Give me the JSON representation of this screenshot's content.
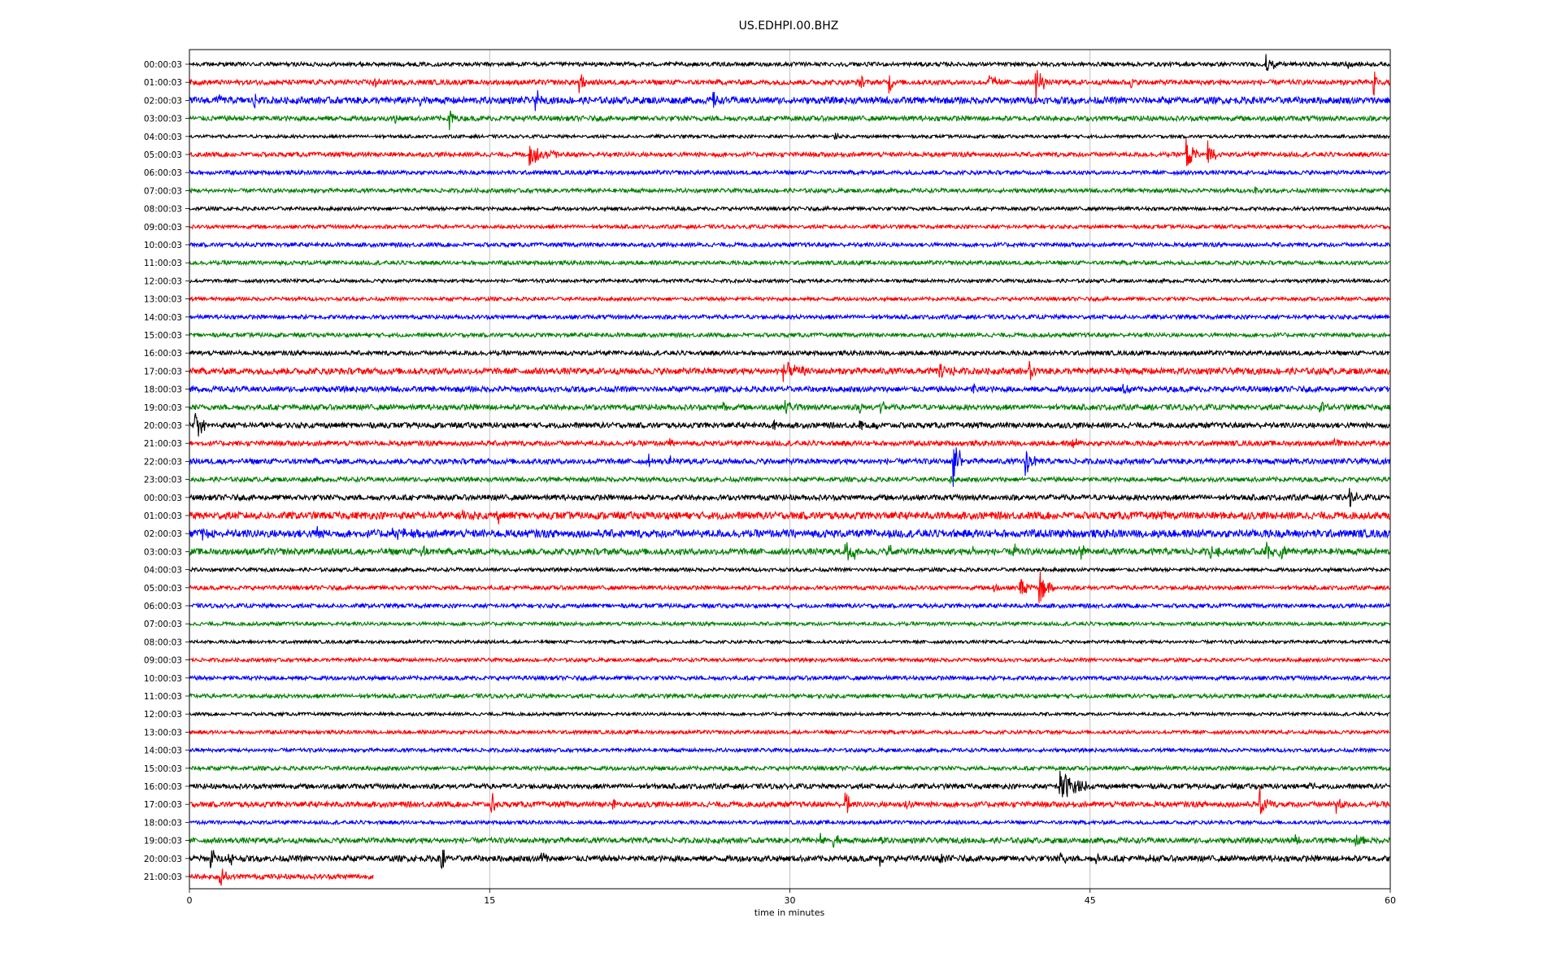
{
  "chart_data": {
    "type": "line",
    "title": "US.EDHPI.00.BHZ",
    "xlabel": "time in minutes",
    "ylabel": "",
    "xlim": [
      0,
      60
    ],
    "xticks": [
      0,
      15,
      30,
      45,
      60
    ],
    "grid": "vertical",
    "legend": "none",
    "color_cycle": [
      "#000000",
      "#ff0000",
      "#0000ff",
      "#008000"
    ],
    "row_labels": [
      "00:00:03",
      "01:00:03",
      "02:00:03",
      "03:00:03",
      "04:00:03",
      "05:00:03",
      "06:00:03",
      "07:00:03",
      "08:00:03",
      "09:00:03",
      "10:00:03",
      "11:00:03",
      "12:00:03",
      "13:00:03",
      "14:00:03",
      "15:00:03",
      "16:00:03",
      "17:00:03",
      "18:00:03",
      "19:00:03",
      "20:00:03",
      "21:00:03",
      "22:00:03",
      "23:00:03",
      "00:00:03",
      "01:00:03",
      "02:00:03",
      "03:00:03",
      "04:00:03",
      "05:00:03",
      "06:00:03",
      "07:00:03",
      "08:00:03",
      "09:00:03",
      "10:00:03",
      "11:00:03",
      "12:00:03",
      "13:00:03",
      "14:00:03",
      "15:00:03",
      "16:00:03",
      "17:00:03",
      "18:00:03",
      "19:00:03",
      "20:00:03",
      "21:00:03"
    ],
    "last_row_end_minute": 9.2,
    "noise_level": [
      0.18,
      0.22,
      0.3,
      0.22,
      0.14,
      0.2,
      0.18,
      0.18,
      0.16,
      0.16,
      0.18,
      0.18,
      0.15,
      0.16,
      0.18,
      0.18,
      0.2,
      0.28,
      0.24,
      0.24,
      0.24,
      0.22,
      0.24,
      0.2,
      0.24,
      0.32,
      0.34,
      0.28,
      0.16,
      0.18,
      0.18,
      0.16,
      0.14,
      0.16,
      0.18,
      0.18,
      0.14,
      0.16,
      0.16,
      0.18,
      0.22,
      0.24,
      0.16,
      0.24,
      0.26,
      0.22
    ],
    "events": [
      {
        "row": 0,
        "t": 53.8,
        "amp": 0.9,
        "dur": 0.5
      },
      {
        "row": 0,
        "t": 57.8,
        "amp": 0.5,
        "dur": 0.4
      },
      {
        "row": 1,
        "t": 9.2,
        "amp": 0.7,
        "dur": 0.3
      },
      {
        "row": 1,
        "t": 19.5,
        "amp": 1.3,
        "dur": 0.3
      },
      {
        "row": 1,
        "t": 33.5,
        "amp": 0.6,
        "dur": 0.3
      },
      {
        "row": 1,
        "t": 35.0,
        "amp": 0.9,
        "dur": 0.2
      },
      {
        "row": 1,
        "t": 40.0,
        "amp": 0.7,
        "dur": 0.5
      },
      {
        "row": 1,
        "t": 42.3,
        "amp": 1.8,
        "dur": 0.5
      },
      {
        "row": 1,
        "t": 47.0,
        "amp": 0.6,
        "dur": 0.2
      },
      {
        "row": 1,
        "t": 59.2,
        "amp": 1.6,
        "dur": 0.2
      },
      {
        "row": 2,
        "t": 1.4,
        "amp": 1.1,
        "dur": 0.3
      },
      {
        "row": 2,
        "t": 3.2,
        "amp": 0.7,
        "dur": 0.3
      },
      {
        "row": 2,
        "t": 11.5,
        "amp": 0.9,
        "dur": 0.2
      },
      {
        "row": 2,
        "t": 17.3,
        "amp": 0.9,
        "dur": 0.4
      },
      {
        "row": 2,
        "t": 26.2,
        "amp": 0.6,
        "dur": 0.2
      },
      {
        "row": 3,
        "t": 10.3,
        "amp": 0.5,
        "dur": 0.3
      },
      {
        "row": 3,
        "t": 13.0,
        "amp": 1.3,
        "dur": 0.3
      },
      {
        "row": 4,
        "t": 32.3,
        "amp": 0.3,
        "dur": 0.2
      },
      {
        "row": 5,
        "t": 17.0,
        "amp": 1.0,
        "dur": 1.4
      },
      {
        "row": 5,
        "t": 49.8,
        "amp": 1.6,
        "dur": 0.6
      },
      {
        "row": 5,
        "t": 50.9,
        "amp": 1.9,
        "dur": 0.4
      },
      {
        "row": 7,
        "t": 53.3,
        "amp": 0.4,
        "dur": 0.3
      },
      {
        "row": 17,
        "t": 29.7,
        "amp": 0.8,
        "dur": 1.2
      },
      {
        "row": 17,
        "t": 37.5,
        "amp": 0.7,
        "dur": 0.8
      },
      {
        "row": 17,
        "t": 42.0,
        "amp": 0.8,
        "dur": 0.4
      },
      {
        "row": 18,
        "t": 39.2,
        "amp": 0.5,
        "dur": 0.2
      },
      {
        "row": 18,
        "t": 46.7,
        "amp": 0.5,
        "dur": 0.5
      },
      {
        "row": 19,
        "t": 26.7,
        "amp": 0.5,
        "dur": 0.3
      },
      {
        "row": 19,
        "t": 29.8,
        "amp": 0.6,
        "dur": 0.8
      },
      {
        "row": 19,
        "t": 33.5,
        "amp": 0.6,
        "dur": 0.2
      },
      {
        "row": 19,
        "t": 34.5,
        "amp": 0.9,
        "dur": 0.3
      },
      {
        "row": 19,
        "t": 56.5,
        "amp": 0.7,
        "dur": 0.4
      },
      {
        "row": 20,
        "t": 0.3,
        "amp": 1.3,
        "dur": 0.5
      },
      {
        "row": 20,
        "t": 29.2,
        "amp": 0.5,
        "dur": 0.2
      },
      {
        "row": 20,
        "t": 33.5,
        "amp": 0.7,
        "dur": 0.3
      },
      {
        "row": 20,
        "t": 34.3,
        "amp": 0.4,
        "dur": 0.4
      },
      {
        "row": 21,
        "t": 24.0,
        "amp": 0.3,
        "dur": 0.2
      },
      {
        "row": 21,
        "t": 44.1,
        "amp": 0.8,
        "dur": 0.3
      },
      {
        "row": 21,
        "t": 57.2,
        "amp": 0.3,
        "dur": 0.5
      },
      {
        "row": 22,
        "t": 23.0,
        "amp": 0.5,
        "dur": 0.2
      },
      {
        "row": 22,
        "t": 24.0,
        "amp": 0.4,
        "dur": 0.2
      },
      {
        "row": 22,
        "t": 38.2,
        "amp": 2.6,
        "dur": 0.5
      },
      {
        "row": 22,
        "t": 41.8,
        "amp": 1.4,
        "dur": 0.5
      },
      {
        "row": 22,
        "t": 55.0,
        "amp": 0.3,
        "dur": 0.3
      },
      {
        "row": 23,
        "t": 38.0,
        "amp": 0.4,
        "dur": 0.3
      },
      {
        "row": 24,
        "t": 58.0,
        "amp": 0.7,
        "dur": 0.5
      },
      {
        "row": 25,
        "t": 13.6,
        "amp": 0.5,
        "dur": 0.2
      },
      {
        "row": 25,
        "t": 15.4,
        "amp": 0.7,
        "dur": 0.2
      },
      {
        "row": 25,
        "t": 17.2,
        "amp": 0.4,
        "dur": 0.2
      },
      {
        "row": 26,
        "t": 0.6,
        "amp": 0.4,
        "dur": 1.0
      },
      {
        "row": 26,
        "t": 6.4,
        "amp": 0.8,
        "dur": 0.2
      },
      {
        "row": 26,
        "t": 10.0,
        "amp": 0.4,
        "dur": 2.0
      },
      {
        "row": 27,
        "t": 11.6,
        "amp": 0.7,
        "dur": 0.3
      },
      {
        "row": 27,
        "t": 32.8,
        "amp": 1.0,
        "dur": 1.0
      },
      {
        "row": 27,
        "t": 35.0,
        "amp": 0.7,
        "dur": 0.3
      },
      {
        "row": 27,
        "t": 39.2,
        "amp": 0.5,
        "dur": 0.3
      },
      {
        "row": 27,
        "t": 41.2,
        "amp": 0.7,
        "dur": 0.2
      },
      {
        "row": 27,
        "t": 44.5,
        "amp": 1.0,
        "dur": 0.3
      },
      {
        "row": 27,
        "t": 51.0,
        "amp": 0.5,
        "dur": 0.8
      },
      {
        "row": 27,
        "t": 53.8,
        "amp": 1.6,
        "dur": 0.4
      },
      {
        "row": 27,
        "t": 54.5,
        "amp": 1.0,
        "dur": 0.4
      },
      {
        "row": 29,
        "t": 40.2,
        "amp": 0.6,
        "dur": 0.3
      },
      {
        "row": 29,
        "t": 41.5,
        "amp": 0.9,
        "dur": 0.6
      },
      {
        "row": 29,
        "t": 42.5,
        "amp": 1.6,
        "dur": 0.7
      },
      {
        "row": 40,
        "t": 43.5,
        "amp": 1.5,
        "dur": 1.5
      },
      {
        "row": 40,
        "t": 56.0,
        "amp": 0.4,
        "dur": 0.3
      },
      {
        "row": 41,
        "t": 15.1,
        "amp": 1.1,
        "dur": 0.3
      },
      {
        "row": 41,
        "t": 21.2,
        "amp": 0.6,
        "dur": 0.3
      },
      {
        "row": 41,
        "t": 32.8,
        "amp": 1.3,
        "dur": 0.3
      },
      {
        "row": 41,
        "t": 35.8,
        "amp": 0.7,
        "dur": 0.3
      },
      {
        "row": 41,
        "t": 53.5,
        "amp": 1.3,
        "dur": 0.6
      },
      {
        "row": 41,
        "t": 57.3,
        "amp": 0.9,
        "dur": 0.4
      },
      {
        "row": 43,
        "t": 31.5,
        "amp": 0.6,
        "dur": 0.5
      },
      {
        "row": 43,
        "t": 32.2,
        "amp": 0.9,
        "dur": 0.3
      },
      {
        "row": 43,
        "t": 34.5,
        "amp": 0.4,
        "dur": 0.3
      },
      {
        "row": 43,
        "t": 55.3,
        "amp": 0.5,
        "dur": 0.2
      },
      {
        "row": 43,
        "t": 58.3,
        "amp": 0.5,
        "dur": 0.5
      },
      {
        "row": 44,
        "t": 1.1,
        "amp": 1.1,
        "dur": 0.4
      },
      {
        "row": 44,
        "t": 2.0,
        "amp": 0.7,
        "dur": 0.2
      },
      {
        "row": 44,
        "t": 12.6,
        "amp": 1.6,
        "dur": 0.2
      },
      {
        "row": 44,
        "t": 17.6,
        "amp": 0.8,
        "dur": 0.3
      },
      {
        "row": 44,
        "t": 34.5,
        "amp": 0.5,
        "dur": 0.3
      },
      {
        "row": 44,
        "t": 37.5,
        "amp": 0.6,
        "dur": 0.6
      },
      {
        "row": 44,
        "t": 43.5,
        "amp": 0.5,
        "dur": 0.4
      },
      {
        "row": 44,
        "t": 45.3,
        "amp": 0.5,
        "dur": 0.3
      },
      {
        "row": 44,
        "t": 48.0,
        "amp": 0.4,
        "dur": 0.2
      },
      {
        "row": 45,
        "t": 1.5,
        "amp": 0.9,
        "dur": 0.5
      }
    ]
  }
}
